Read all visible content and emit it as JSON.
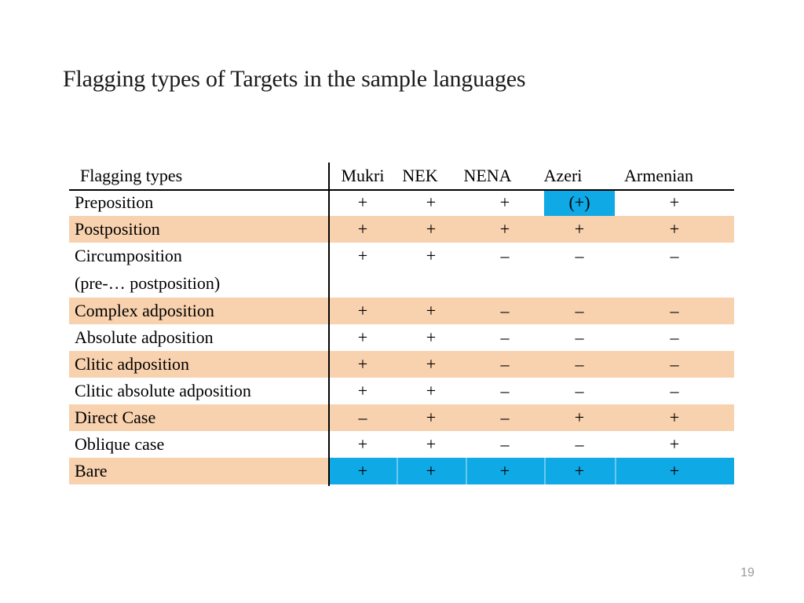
{
  "slide": {
    "title": "Flagging types of Targets in the sample languages",
    "page_number": "19"
  },
  "colors": {
    "highlight_blue": "#0FA9E5",
    "row_peach": "#F8D1AE",
    "text": "#000000",
    "page_number_gray": "#9B9B9B"
  },
  "table": {
    "header": [
      "Flagging types",
      "Mukri",
      "NEK",
      "NENA",
      "Azeri",
      "Armenian"
    ],
    "rows": [
      {
        "label": "Preposition",
        "values": [
          "+",
          "+",
          "+",
          "(+)",
          "+"
        ],
        "shaded": false,
        "highlight_col": 3
      },
      {
        "label": "Postposition",
        "values": [
          "+",
          "+",
          "+",
          "+",
          "+"
        ],
        "shaded": true
      },
      {
        "label": "Circumposition",
        "values": [
          "+",
          "+",
          "–",
          "–",
          "–"
        ],
        "shaded": false
      },
      {
        "label": "(pre-… postposition)",
        "values": [
          "",
          "",
          "",
          "",
          ""
        ],
        "shaded": false
      },
      {
        "label": "Complex adposition",
        "values": [
          "+",
          "+",
          "–",
          "–",
          "–"
        ],
        "shaded": true
      },
      {
        "label": "Absolute adposition",
        "values": [
          "+",
          "+",
          "–",
          "–",
          "–"
        ],
        "shaded": false
      },
      {
        "label": "Clitic adposition",
        "values": [
          "+",
          "+",
          "–",
          "–",
          "–"
        ],
        "shaded": true
      },
      {
        "label": "Clitic absolute adposition",
        "values": [
          "+",
          "+",
          "–",
          "–",
          "–"
        ],
        "shaded": false
      },
      {
        "label": "Direct Case",
        "values": [
          "–",
          "+",
          "–",
          "+",
          "+"
        ],
        "shaded": true
      },
      {
        "label": "Oblique case",
        "values": [
          "+",
          "+",
          "–",
          "–",
          "+"
        ],
        "shaded": false
      },
      {
        "label": "Bare",
        "values": [
          "+",
          "+",
          "+",
          "+",
          "+"
        ],
        "shaded": true,
        "data_bg_blue": true
      }
    ]
  }
}
